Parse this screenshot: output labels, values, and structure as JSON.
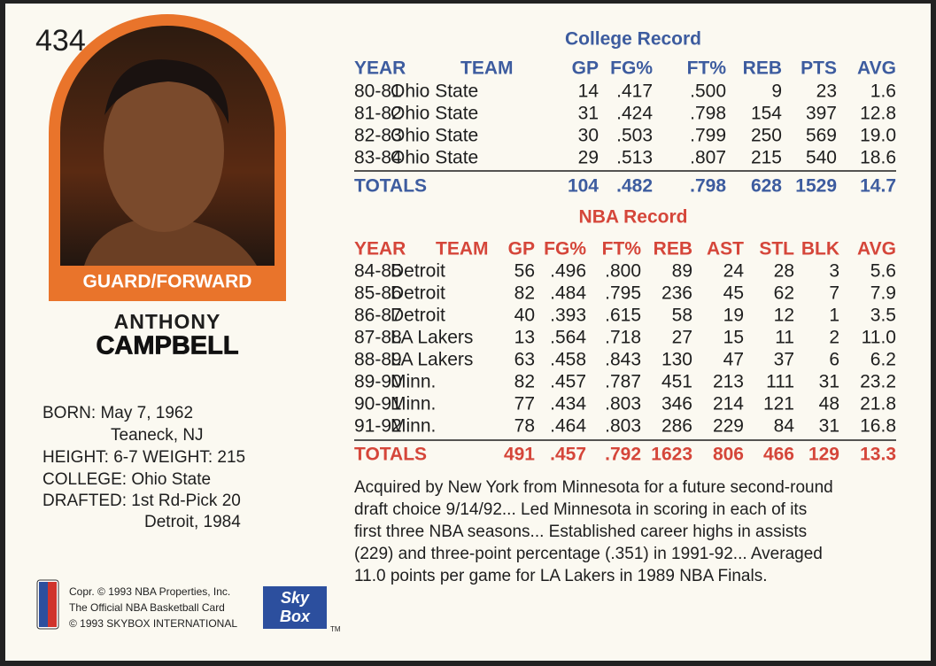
{
  "card_number": "434",
  "position": "GUARD/FORWARD",
  "first_name": "ANTHONY",
  "last_name": "CAMPBELL",
  "bio": [
    "BORN: May 7, 1962",
    "Teaneck, NJ",
    "HEIGHT: 6-7 WEIGHT: 215",
    "COLLEGE: Ohio State",
    "DRAFTED: 1st Rd-Pick 20",
    "Detroit, 1984"
  ],
  "college_record": {
    "title": "College Record",
    "columns": [
      "YEAR",
      "TEAM",
      "GP",
      "FG%",
      "FT%",
      "REB",
      "PTS",
      "AVG"
    ],
    "rows": [
      [
        "80-81",
        "Ohio State",
        "14",
        ".417",
        ".500",
        "9",
        "23",
        "1.6"
      ],
      [
        "81-82",
        "Ohio State",
        "31",
        ".424",
        ".798",
        "154",
        "397",
        "12.8"
      ],
      [
        "82-83",
        "Ohio State",
        "30",
        ".503",
        ".799",
        "250",
        "569",
        "19.0"
      ],
      [
        "83-84",
        "Ohio State",
        "29",
        ".513",
        ".807",
        "215",
        "540",
        "18.6"
      ]
    ],
    "totals": [
      "TOTALS",
      "104",
      ".482",
      ".798",
      "628",
      "1529",
      "14.7"
    ]
  },
  "nba_record": {
    "title": "NBA Record",
    "columns": [
      "YEAR",
      "TEAM",
      "GP",
      "FG%",
      "FT%",
      "REB",
      "AST",
      "STL",
      "BLK",
      "AVG"
    ],
    "rows": [
      [
        "84-85",
        "Detroit",
        "56",
        ".496",
        ".800",
        "89",
        "24",
        "28",
        "3",
        "5.6"
      ],
      [
        "85-86",
        "Detroit",
        "82",
        ".484",
        ".795",
        "236",
        "45",
        "62",
        "7",
        "7.9"
      ],
      [
        "86-87",
        "Detroit",
        "40",
        ".393",
        ".615",
        "58",
        "19",
        "12",
        "1",
        "3.5"
      ],
      [
        "87-88",
        "LA Lakers",
        "13",
        ".564",
        ".718",
        "27",
        "15",
        "11",
        "2",
        "11.0"
      ],
      [
        "88-89",
        "LA Lakers",
        "63",
        ".458",
        ".843",
        "130",
        "47",
        "37",
        "6",
        "6.2"
      ],
      [
        "89-90",
        "Minn.",
        "82",
        ".457",
        ".787",
        "451",
        "213",
        "111",
        "31",
        "23.2"
      ],
      [
        "90-91",
        "Minn.",
        "77",
        ".434",
        ".803",
        "346",
        "214",
        "121",
        "48",
        "21.8"
      ],
      [
        "91-92",
        "Minn.",
        "78",
        ".464",
        ".803",
        "286",
        "229",
        "84",
        "31",
        "16.8"
      ]
    ],
    "totals": [
      "TOTALS",
      "491",
      ".457",
      ".792",
      "1623",
      "806",
      "466",
      "129",
      "13.3"
    ]
  },
  "notes": [
    "Acquired by New York from Minnesota for a future second-round",
    "draft choice 9/14/92... Led Minnesota in scoring in each of its",
    "first three NBA seasons... Established career highs in assists",
    "(229) and three-point percentage (.351) in 1991-92... Averaged",
    "11.0 points per game for LA Lakers in 1989 NBA Finals."
  ],
  "copyright": [
    "Copr. © 1993 NBA Properties, Inc.",
    "The Official NBA Basketball Card",
    "© 1993 SKYBOX INTERNATIONAL"
  ],
  "brand": [
    "Sky",
    "Box"
  ],
  "trademark": "TM"
}
